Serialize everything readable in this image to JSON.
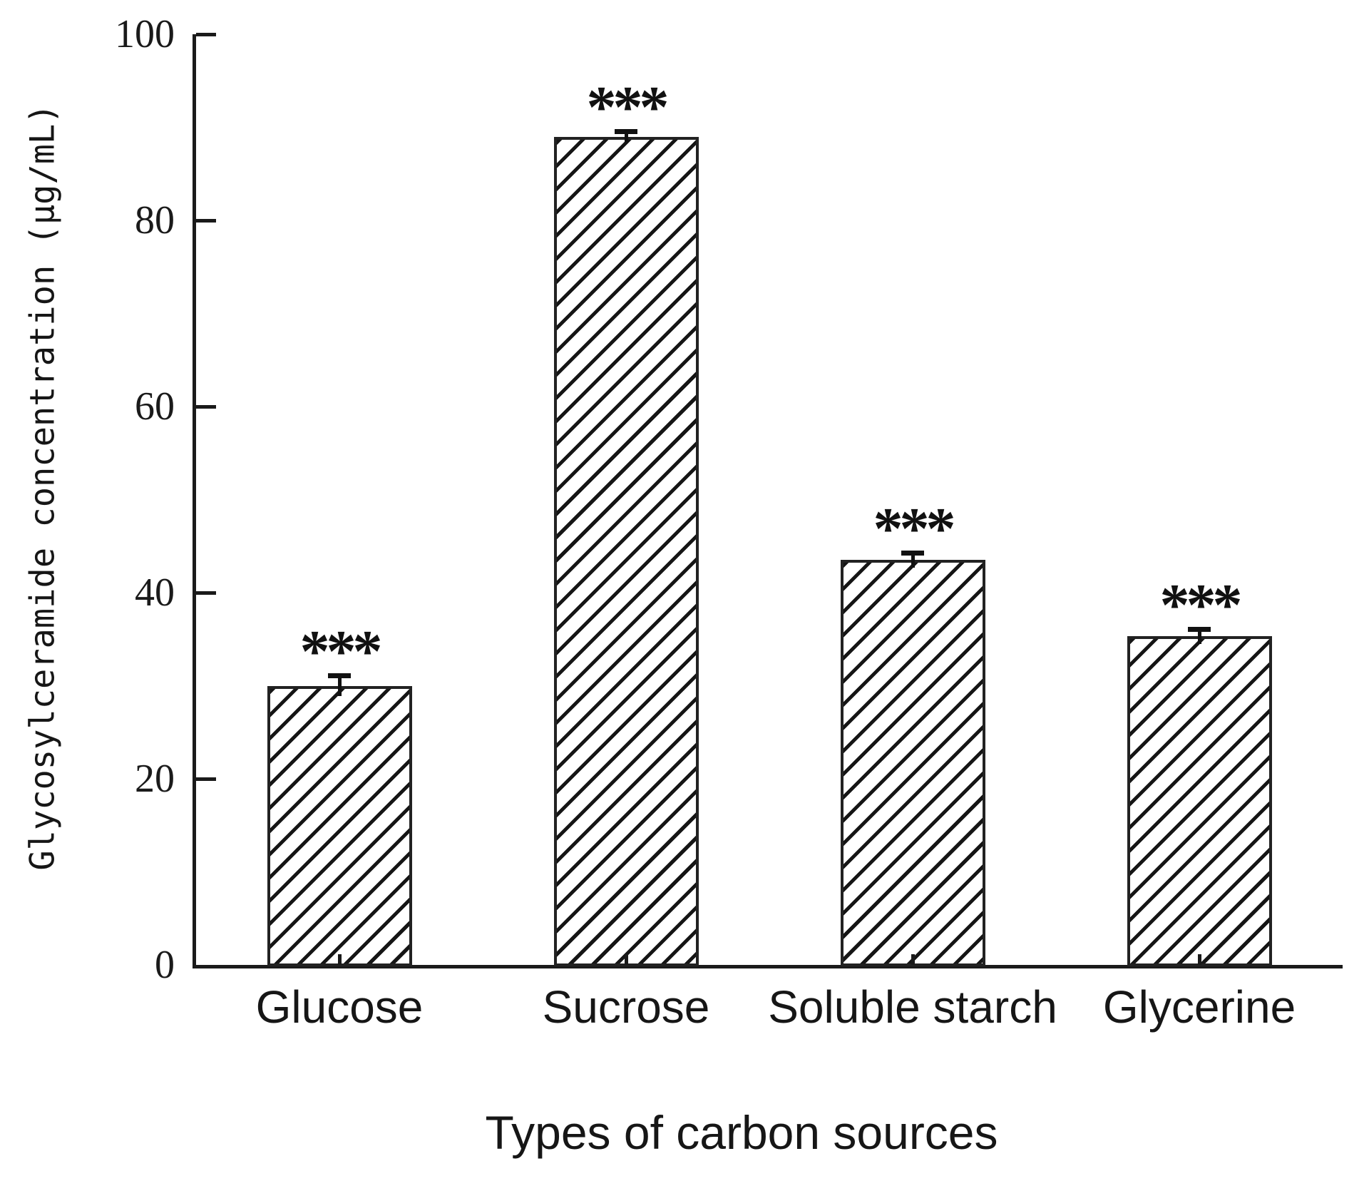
{
  "chart_data": {
    "type": "bar",
    "title": "",
    "xlabel": "Types of carbon sources",
    "ylabel": "Glycosylceramide concentration (μg/mL)",
    "categories": [
      "Glucose",
      "Sucrose",
      "Soluble starch",
      "Glycerine"
    ],
    "values": [
      30,
      89,
      43.5,
      35.3
    ],
    "errors": [
      1.1,
      0.6,
      0.8,
      0.8
    ],
    "significance": [
      "***",
      "***",
      "***",
      "***"
    ],
    "ylim": [
      0,
      100
    ],
    "yticks": [
      0,
      20,
      40,
      60,
      80,
      100
    ],
    "grid": false,
    "legend": null,
    "bar_fill": "#ffffff",
    "hatch": "forward-diagonal",
    "ink_color": "#1a1a1a"
  }
}
